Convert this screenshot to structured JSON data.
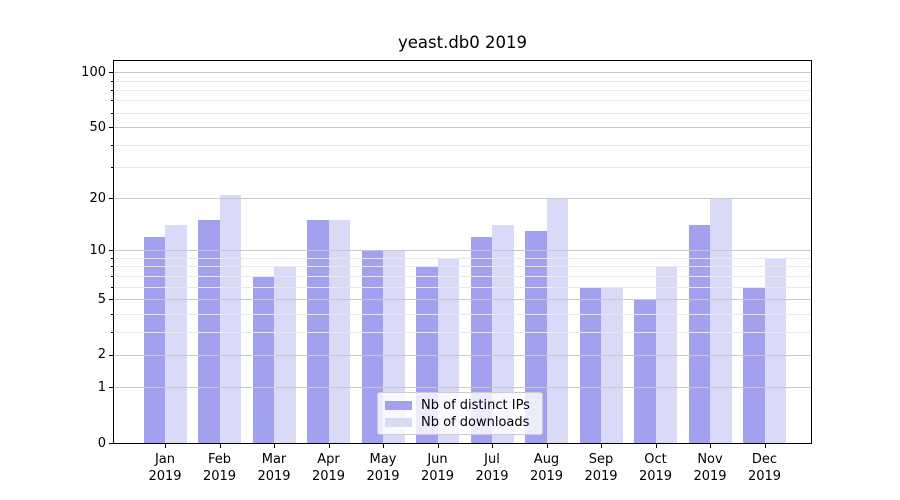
{
  "chart_data": {
    "type": "bar",
    "title": "yeast.db0 2019",
    "categories": [
      "Jan 2019",
      "Feb 2019",
      "Mar 2019",
      "Apr 2019",
      "May 2019",
      "Jun 2019",
      "Jul 2019",
      "Aug 2019",
      "Sep 2019",
      "Oct 2019",
      "Nov 2019",
      "Dec 2019"
    ],
    "series": [
      {
        "name": "Nb of distinct IPs",
        "color": "#a1a1f0",
        "values": [
          12,
          15,
          7,
          15,
          10,
          8,
          12,
          13,
          6,
          5,
          14,
          6
        ]
      },
      {
        "name": "Nb of downloads",
        "color": "#d9d9f8",
        "values": [
          14,
          21,
          8,
          15,
          10,
          9,
          14,
          20,
          6,
          8,
          20,
          9
        ]
      }
    ],
    "xlabel": "",
    "ylabel": "",
    "y_scale": "log10(1+value)",
    "y_ticks": [
      0,
      1,
      2,
      5,
      10,
      20,
      50,
      100
    ],
    "y_minor_ticks": [
      3,
      4,
      6,
      7,
      8,
      9,
      30,
      40,
      60,
      70,
      80,
      90
    ],
    "ylim": [
      0,
      115
    ],
    "grid": "on",
    "legend_position": "lower center",
    "colors": {
      "major_grid": "#c8c8c8",
      "minor_grid": "#e9e9e9",
      "axis": "#000000",
      "background": "#ffffff",
      "legend_border": "#cccccc"
    }
  }
}
